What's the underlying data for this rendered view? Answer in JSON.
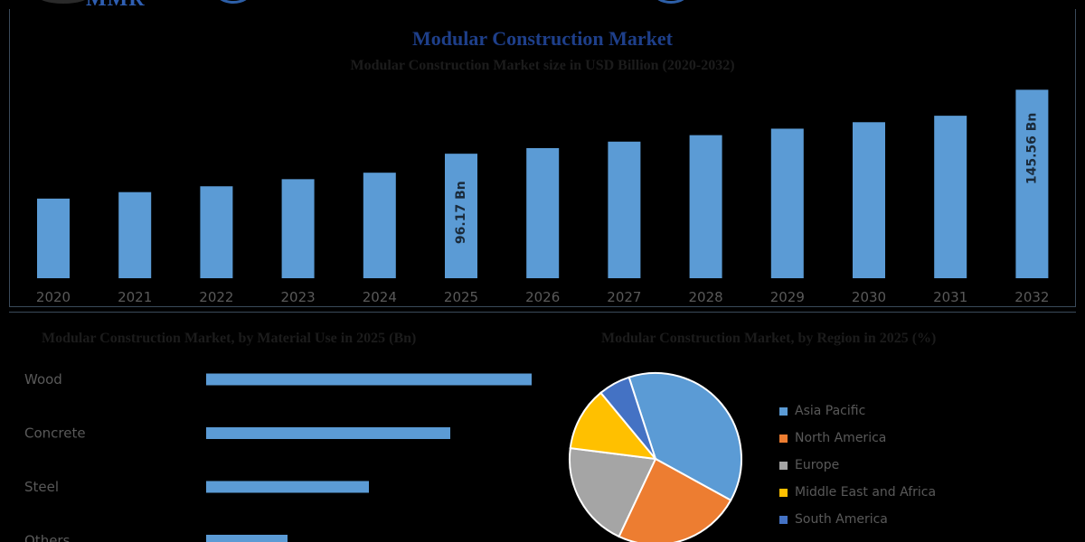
{
  "branding": {
    "logo_text": "MMR"
  },
  "colors": {
    "bar": "#5b9bd5",
    "background": "#000000",
    "axis_text": "#595959"
  },
  "chart_data": [
    {
      "type": "bar",
      "title": "Modular Construction Market",
      "subtitle": "Modular Construction Market size in USD Billion (2020-2032)",
      "xlabel": "",
      "ylabel": "",
      "categories": [
        "2020",
        "2021",
        "2022",
        "2023",
        "2024",
        "2025",
        "2026",
        "2027",
        "2028",
        "2029",
        "2030",
        "2031",
        "2032"
      ],
      "values": [
        61.5,
        66.5,
        71.0,
        76.5,
        81.5,
        96.17,
        100.5,
        105.5,
        110.5,
        115.5,
        120.5,
        125.5,
        145.56
      ],
      "data_labels": [
        {
          "index": 5,
          "text": "96.17 Bn"
        },
        {
          "index": 12,
          "text": "145.56 Bn"
        }
      ],
      "ylim": [
        0,
        150
      ],
      "grid": false,
      "legend": "none"
    },
    {
      "type": "bar",
      "orientation": "horizontal",
      "title": "Modular Construction Market, by Material Use in 2025 (Bn)",
      "categories": [
        "Wood",
        "Concrete",
        "Steel",
        "Others"
      ],
      "values": [
        36,
        27,
        18,
        9
      ],
      "xlim": [
        0,
        40
      ],
      "grid": false,
      "legend": "none"
    },
    {
      "type": "pie",
      "title": "Modular Construction Market, by Region in 2025 (%)",
      "labels": [
        "Asia Pacific",
        "North America",
        "Europe",
        "Middle East and Africa",
        "South America"
      ],
      "values": [
        38,
        24,
        20,
        12,
        6
      ],
      "colors": [
        "#5b9bd5",
        "#ed7d31",
        "#a5a5a5",
        "#ffc000",
        "#4472c4"
      ],
      "legend": "right"
    }
  ]
}
